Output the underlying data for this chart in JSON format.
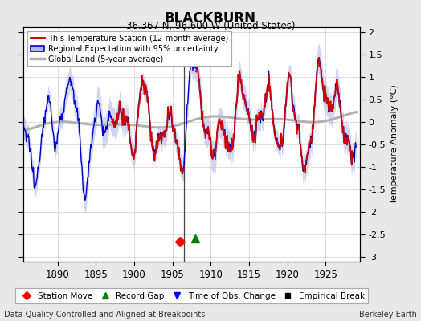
{
  "title": "BLACKBURN",
  "subtitle": "36.367 N, 96.600 W (United States)",
  "xlabel_note": "Data Quality Controlled and Aligned at Breakpoints",
  "credit": "Berkeley Earth",
  "ylabel": "Temperature Anomaly (°C)",
  "xlim": [
    1885.5,
    1929.5
  ],
  "ylim": [
    -3.1,
    2.1
  ],
  "yticks": [
    -3,
    -2.5,
    -2,
    -1.5,
    -1,
    -0.5,
    0,
    0.5,
    1,
    1.5,
    2
  ],
  "xticks": [
    1890,
    1895,
    1900,
    1905,
    1910,
    1915,
    1920,
    1925
  ],
  "station_move_x": 1906.0,
  "station_move_y": -2.65,
  "record_gap_x": 1908.0,
  "record_gap_y": -2.58,
  "background_color": "#e8e8e8",
  "plot_bg_color": "#ffffff",
  "regional_line_color": "#0000cc",
  "regional_fill_color": "#b0b8e8",
  "station_line_color": "#cc0000",
  "global_line_color": "#b0b0b0",
  "vline_x": 1906.5,
  "vline_color": "#444444"
}
